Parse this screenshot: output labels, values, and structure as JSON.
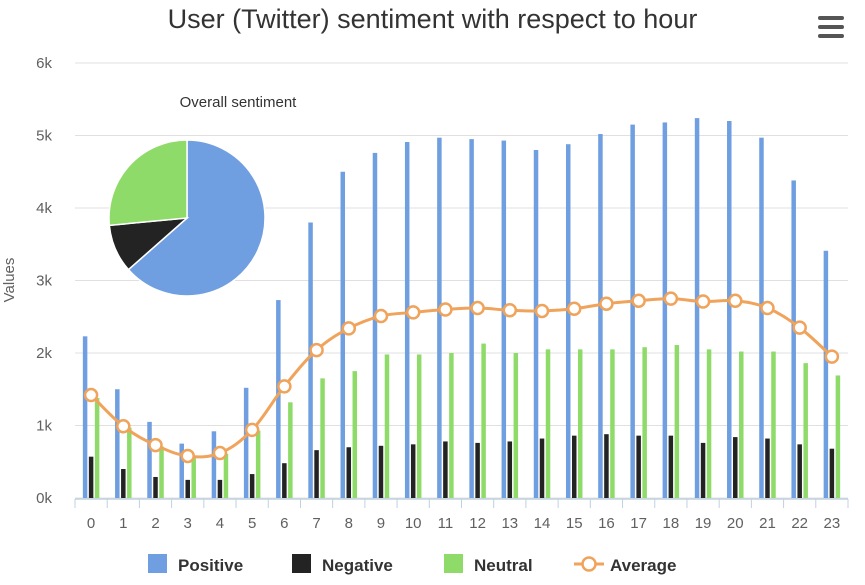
{
  "chart_data": {
    "type": "bar",
    "title": "User (Twitter) sentiment with respect to hour",
    "xlabel": "",
    "ylabel": "Values",
    "ylim": [
      0,
      6000
    ],
    "yticks": [
      "0k",
      "1k",
      "2k",
      "3k",
      "4k",
      "5k",
      "6k"
    ],
    "grid": true,
    "legend_placement": "bottom",
    "categories": [
      "0",
      "1",
      "2",
      "3",
      "4",
      "5",
      "6",
      "7",
      "8",
      "9",
      "10",
      "11",
      "12",
      "13",
      "14",
      "15",
      "16",
      "17",
      "18",
      "19",
      "20",
      "21",
      "22",
      "23"
    ],
    "series": [
      {
        "name": "Positive",
        "type": "bar",
        "color": "#6f9fe0",
        "values": [
          2230,
          1500,
          1050,
          750,
          920,
          1520,
          2730,
          3800,
          4500,
          4760,
          4910,
          4970,
          4950,
          4930,
          4800,
          4880,
          5020,
          5150,
          5180,
          5240,
          5200,
          4970,
          4380,
          3410
        ]
      },
      {
        "name": "Negative",
        "type": "bar",
        "color": "#232323",
        "values": [
          570,
          400,
          290,
          250,
          250,
          330,
          480,
          660,
          700,
          720,
          740,
          780,
          760,
          780,
          820,
          860,
          880,
          860,
          860,
          760,
          840,
          820,
          740,
          680
        ]
      },
      {
        "name": "Neutral",
        "type": "bar",
        "color": "#8fdb6a",
        "values": [
          1380,
          970,
          710,
          580,
          610,
          930,
          1320,
          1650,
          1750,
          1980,
          1980,
          2000,
          2130,
          2000,
          2050,
          2050,
          2050,
          2080,
          2110,
          2050,
          2020,
          2020,
          1860,
          1690
        ]
      },
      {
        "name": "Average",
        "type": "line",
        "color": "#f0a35a",
        "values": [
          1420,
          990,
          730,
          580,
          620,
          940,
          1540,
          2040,
          2340,
          2510,
          2560,
          2600,
          2620,
          2590,
          2580,
          2610,
          2680,
          2720,
          2750,
          2710,
          2720,
          2620,
          2350,
          1950
        ]
      }
    ],
    "inset_pie": {
      "title": "Overall sentiment",
      "slices": [
        {
          "name": "Positive",
          "value": 63.5,
          "color": "#6f9fe0"
        },
        {
          "name": "Negative",
          "value": 10.0,
          "color": "#232323"
        },
        {
          "name": "Neutral",
          "value": 26.5,
          "color": "#8fdb6a"
        }
      ]
    }
  },
  "menu_icon": "hamburger-menu-icon"
}
